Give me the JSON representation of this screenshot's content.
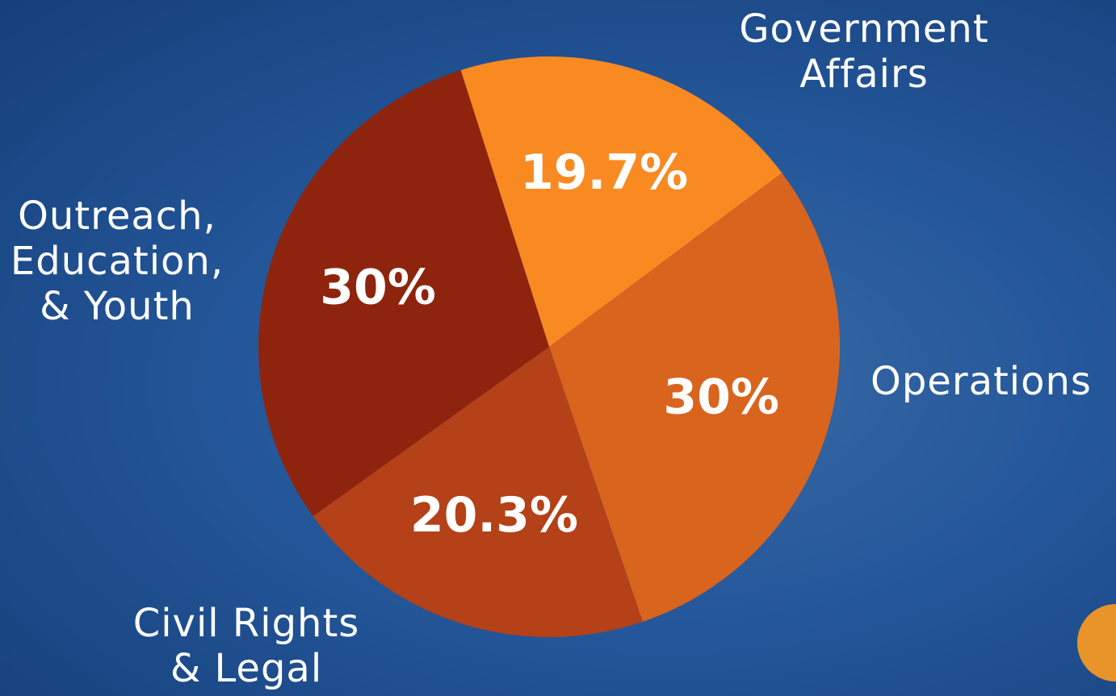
{
  "chart_data": {
    "type": "pie",
    "categories": [
      "Government\nAffairs",
      "Operations",
      "Civil Rights\n& Legal",
      "Outreach,\nEducation,\n& Youth"
    ],
    "values": [
      19.7,
      30,
      20.3,
      30
    ],
    "value_labels": [
      "19.7%",
      "30%",
      "20.3%",
      "30%"
    ],
    "colors": [
      "#f98a22",
      "#d9641e",
      "#b44117",
      "#8e240d"
    ]
  }
}
